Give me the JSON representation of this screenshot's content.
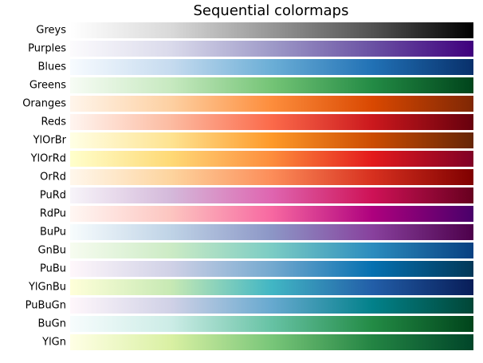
{
  "title": "Sequential colormaps",
  "colormaps": [
    {
      "name": "Greys",
      "colors": [
        "#ffffff",
        "#d9d9d9",
        "#969696",
        "#525252",
        "#000000"
      ]
    },
    {
      "name": "Purples",
      "colors": [
        "#fcfbfd",
        "#dadaeb",
        "#9e9ac8",
        "#6a51a3",
        "#3f007d"
      ]
    },
    {
      "name": "Blues",
      "colors": [
        "#f7fbff",
        "#c6dbef",
        "#6baed6",
        "#2171b5",
        "#08306b"
      ]
    },
    {
      "name": "Greens",
      "colors": [
        "#f7fcf5",
        "#c7e9c0",
        "#74c476",
        "#238b45",
        "#00441b"
      ]
    },
    {
      "name": "Oranges",
      "colors": [
        "#fff5eb",
        "#fdd0a2",
        "#fd8d3c",
        "#d94801",
        "#7f2704"
      ]
    },
    {
      "name": "Reds",
      "colors": [
        "#fff5f0",
        "#fcbba1",
        "#fb6a4a",
        "#cb181d",
        "#67000d"
      ]
    },
    {
      "name": "YlOrBr",
      "colors": [
        "#ffffe5",
        "#fee391",
        "#fe9929",
        "#cc4c02",
        "#662506"
      ]
    },
    {
      "name": "YlOrRd",
      "colors": [
        "#ffffcc",
        "#fed976",
        "#fd8d3c",
        "#e31a1c",
        "#800026"
      ]
    },
    {
      "name": "OrRd",
      "colors": [
        "#fff7ec",
        "#fdd49e",
        "#fc8d59",
        "#d7301f",
        "#7f0000"
      ]
    },
    {
      "name": "PuRd",
      "colors": [
        "#f7f4f9",
        "#d4b9da",
        "#df65b0",
        "#ce1256",
        "#67001f"
      ]
    },
    {
      "name": "RdPu",
      "colors": [
        "#fff7f3",
        "#fcc5c0",
        "#f768a1",
        "#ae017e",
        "#49006a"
      ]
    },
    {
      "name": "BuPu",
      "colors": [
        "#f7fcfd",
        "#bfd3e6",
        "#8c96c6",
        "#88419d",
        "#4d004b"
      ]
    },
    {
      "name": "GnBu",
      "colors": [
        "#f7fcf0",
        "#ccebc5",
        "#7bccc4",
        "#2b8cbe",
        "#084081"
      ]
    },
    {
      "name": "PuBu",
      "colors": [
        "#fff7fb",
        "#d0d1e6",
        "#74a9cf",
        "#0570b0",
        "#023858"
      ]
    },
    {
      "name": "YlGnBu",
      "colors": [
        "#ffffd9",
        "#c7e9b4",
        "#41b6c4",
        "#225ea8",
        "#081d58"
      ]
    },
    {
      "name": "PuBuGn",
      "colors": [
        "#fff7fb",
        "#d0d1e6",
        "#67a9cf",
        "#02818a",
        "#014636"
      ]
    },
    {
      "name": "BuGn",
      "colors": [
        "#f7fcfd",
        "#ccece6",
        "#66c2a4",
        "#238b45",
        "#00441b"
      ]
    },
    {
      "name": "YlGn",
      "colors": [
        "#ffffe5",
        "#d9f0a3",
        "#78c679",
        "#238443",
        "#004529"
      ]
    }
  ]
}
